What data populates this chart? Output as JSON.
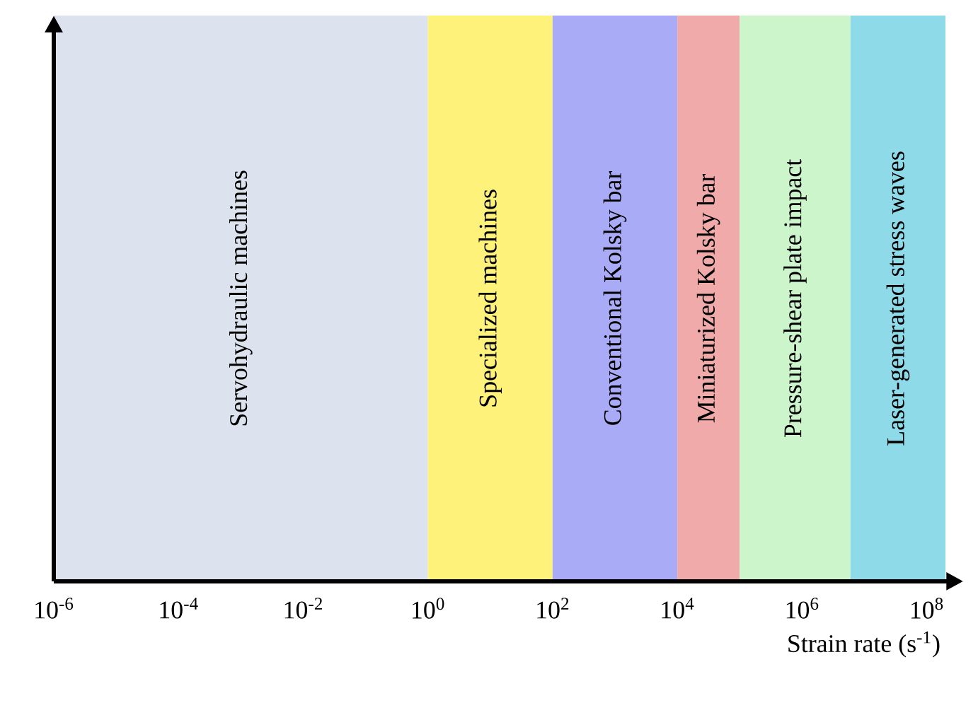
{
  "chart_data": {
    "type": "bar",
    "orientation": "horizontal",
    "xlabel": "Strain rate (s$^{-1}$)",
    "log": "x",
    "xlim": [
      1e-06,
      200000000.0
    ],
    "xticks": [
      {
        "value": 1e-06,
        "label": "10$^{-6}$"
      },
      {
        "value": 0.0001,
        "label": "10$^{-4}$"
      },
      {
        "value": 0.01,
        "label": "10$^{-2}$"
      },
      {
        "value": 1,
        "label": "10$^{0}$"
      },
      {
        "value": 100.0,
        "label": "10$^{2}$"
      },
      {
        "value": 10000.0,
        "label": "10$^{4}$"
      },
      {
        "value": 1000000.0,
        "label": "10$^{6}$"
      },
      {
        "value": 100000000.0,
        "label": "10$^{8}$"
      }
    ],
    "categories": [
      null
    ],
    "series": [
      {
        "name": "Servohydraulic machines",
        "color": "#dde2ef",
        "base": [
          1e-06
        ],
        "values": [
          0.999999
        ]
      },
      {
        "name": "Specialized machines",
        "color": "#fff27a",
        "base": [
          1
        ],
        "values": [
          99
        ]
      },
      {
        "name": "Conventional Kolsky bar",
        "color": "#aaabf6",
        "base": [
          100
        ],
        "values": [
          9900
        ]
      },
      {
        "name": "Miniaturized Kolsky bar",
        "color": "#f0aaaa",
        "base": [
          10000
        ],
        "values": [
          90000
        ]
      },
      {
        "name": "Pressure-shear plate impact",
        "color": "#ccf5cc",
        "base": [
          100000
        ],
        "values": [
          5900000
        ]
      },
      {
        "name": "Laser-generated stress waves",
        "color": "#8edae8",
        "base": [
          6000000
        ],
        "values": [
          194000000
        ]
      }
    ]
  }
}
